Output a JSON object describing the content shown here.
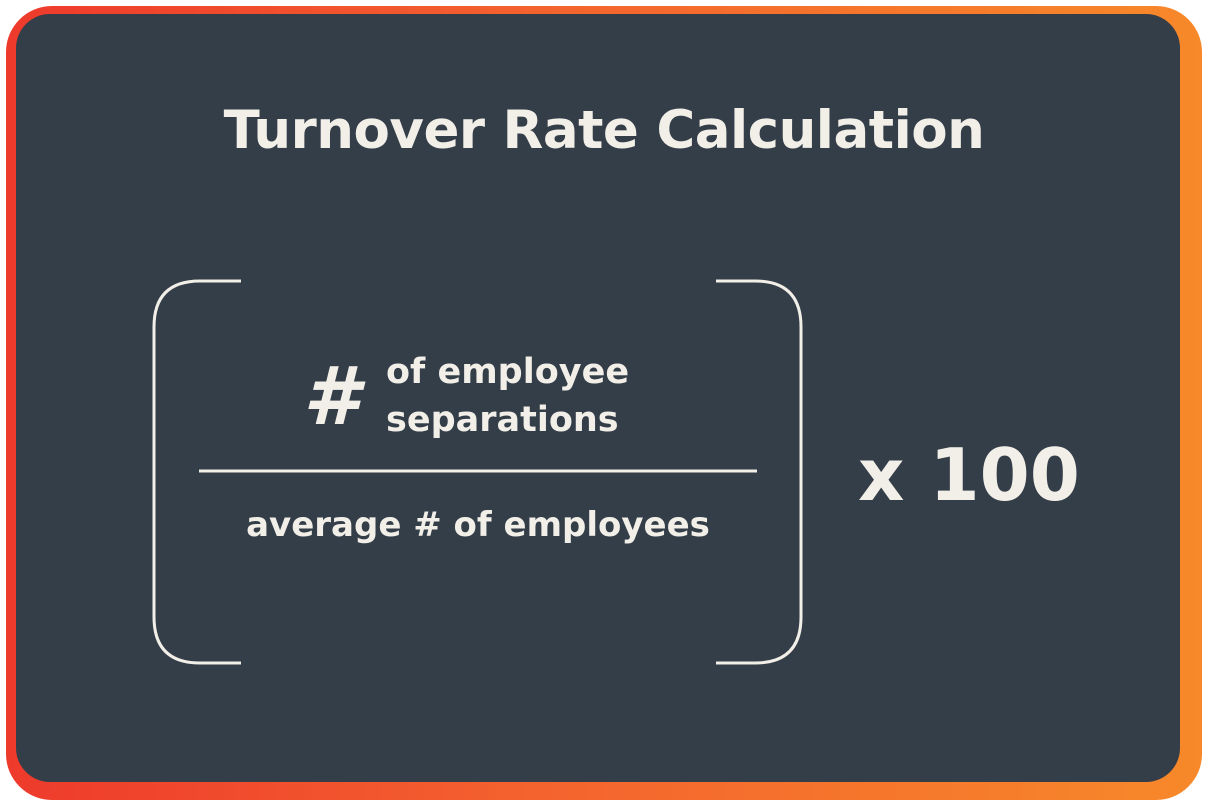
{
  "title": "Turnover Rate Calculation",
  "formula": {
    "numerator_symbol": "#",
    "numerator_line1": "of employee",
    "numerator_line2": "separations",
    "denominator": "average # of employees",
    "multiplier": "x 100"
  },
  "colors": {
    "background": "#343e48",
    "text": "#f2efe9",
    "border_gradient_start": "#ee3a2c",
    "border_gradient_end": "#f7892a"
  }
}
